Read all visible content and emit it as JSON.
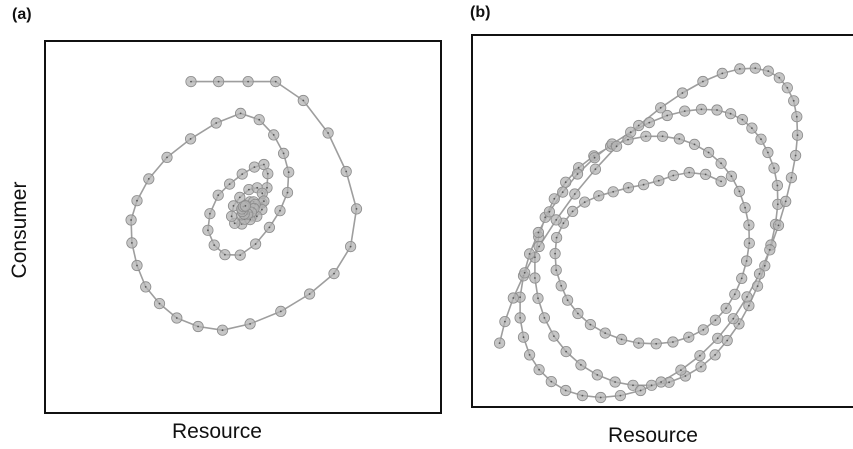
{
  "chart_data": [
    {
      "type": "line",
      "panel": "(a)",
      "xlabel": "Resource",
      "ylabel": "Consumer",
      "series": [
        {
          "marker": "circle",
          "color": "#b3b3b3",
          "x": [
            0.368,
            0.438,
            0.513,
            0.583,
            0.653,
            0.716,
            0.762,
            0.788,
            0.773,
            0.731,
            0.669,
            0.596,
            0.518,
            0.448,
            0.386,
            0.332,
            0.288,
            0.253,
            0.231,
            0.218,
            0.216,
            0.231,
            0.261,
            0.307,
            0.367,
            0.432,
            0.494,
            0.541,
            0.578,
            0.603,
            0.616,
            0.613,
            0.594,
            0.567,
            0.532,
            0.493,
            0.454,
            0.427,
            0.411,
            0.416,
            0.437,
            0.466,
            0.498,
            0.529,
            0.553,
            0.563,
            0.561,
            0.548,
            0.523,
            0.497,
            0.479,
            0.471,
            0.476,
            0.492,
            0.515,
            0.536,
            0.549,
            0.553,
            0.548,
            0.535,
            0.518,
            0.504,
            0.497,
            0.499,
            0.507,
            0.518,
            0.527,
            0.531,
            0.528,
            0.521,
            0.512,
            0.503,
            0.498,
            0.497,
            0.501,
            0.506
          ],
          "y": [
            0.893,
            0.893,
            0.893,
            0.893,
            0.842,
            0.754,
            0.65,
            0.549,
            0.447,
            0.374,
            0.319,
            0.272,
            0.238,
            0.221,
            0.231,
            0.254,
            0.293,
            0.338,
            0.396,
            0.457,
            0.519,
            0.571,
            0.63,
            0.688,
            0.738,
            0.781,
            0.807,
            0.79,
            0.749,
            0.699,
            0.648,
            0.593,
            0.544,
            0.499,
            0.454,
            0.424,
            0.425,
            0.451,
            0.491,
            0.536,
            0.586,
            0.616,
            0.643,
            0.662,
            0.669,
            0.644,
            0.606,
            0.565,
            0.53,
            0.508,
            0.51,
            0.529,
            0.557,
            0.58,
            0.601,
            0.606,
            0.591,
            0.57,
            0.547,
            0.529,
            0.52,
            0.521,
            0.533,
            0.546,
            0.559,
            0.568,
            0.568,
            0.561,
            0.55,
            0.54,
            0.535,
            0.535,
            0.542,
            0.549,
            0.555,
            0.557
          ]
        }
      ]
    },
    {
      "type": "line",
      "panel": "(b)",
      "xlabel": "Resource",
      "ylabel": "Consumer",
      "series": [
        {
          "marker": "circle",
          "color": "#b3b3b3",
          "x": [
            0.653,
            0.612,
            0.569,
            0.527,
            0.489,
            0.449,
            0.409,
            0.369,
            0.331,
            0.294,
            0.262,
            0.238,
            0.22,
            0.216,
            0.219,
            0.232,
            0.249,
            0.276,
            0.309,
            0.348,
            0.391,
            0.436,
            0.482,
            0.526,
            0.568,
            0.606,
            0.638,
            0.666,
            0.689,
            0.707,
            0.72,
            0.727,
            0.726,
            0.716,
            0.701,
            0.68,
            0.653,
            0.62,
            0.583,
            0.543,
            0.499,
            0.455,
            0.408,
            0.362,
            0.318,
            0.278,
            0.244,
            0.214,
            0.19,
            0.173,
            0.163,
            0.163,
            0.171,
            0.188,
            0.213,
            0.245,
            0.284,
            0.327,
            0.374,
            0.421,
            0.47,
            0.516,
            0.559,
            0.6,
            0.637,
            0.669,
            0.7,
            0.726,
            0.749,
            0.768,
            0.784,
            0.796,
            0.802,
            0.801,
            0.792,
            0.776,
            0.758,
            0.734,
            0.709,
            0.678,
            0.642,
            0.601,
            0.557,
            0.511,
            0.464,
            0.415,
            0.366,
            0.32,
            0.275,
            0.236,
            0.201,
            0.172,
            0.149,
            0.133,
            0.124,
            0.124,
            0.133,
            0.149,
            0.174,
            0.206,
            0.244,
            0.288,
            0.336,
            0.388,
            0.441,
            0.495,
            0.547,
            0.597,
            0.644,
            0.685,
            0.721,
            0.754,
            0.781,
            0.804,
            0.823,
            0.838,
            0.849,
            0.854,
            0.852,
            0.844,
            0.827,
            0.806,
            0.777,
            0.743,
            0.702,
            0.656,
            0.605,
            0.551,
            0.494,
            0.436,
            0.378,
            0.322,
            0.268,
            0.219,
            0.174,
            0.136,
            0.106,
            0.084,
            0.07
          ],
          "y": [
            0.607,
            0.626,
            0.631,
            0.623,
            0.609,
            0.598,
            0.59,
            0.579,
            0.568,
            0.551,
            0.526,
            0.494,
            0.455,
            0.412,
            0.367,
            0.325,
            0.286,
            0.25,
            0.22,
            0.197,
            0.18,
            0.17,
            0.168,
            0.173,
            0.186,
            0.206,
            0.232,
            0.264,
            0.302,
            0.345,
            0.392,
            0.44,
            0.489,
            0.536,
            0.58,
            0.621,
            0.656,
            0.685,
            0.707,
            0.722,
            0.729,
            0.729,
            0.72,
            0.702,
            0.676,
            0.644,
            0.605,
            0.56,
            0.51,
            0.457,
            0.402,
            0.346,
            0.291,
            0.238,
            0.189,
            0.147,
            0.111,
            0.084,
            0.065,
            0.056,
            0.056,
            0.064,
            0.081,
            0.106,
            0.138,
            0.177,
            0.222,
            0.271,
            0.324,
            0.379,
            0.435,
            0.491,
            0.545,
            0.596,
            0.643,
            0.685,
            0.721,
            0.751,
            0.774,
            0.79,
            0.8,
            0.802,
            0.797,
            0.785,
            0.766,
            0.74,
            0.708,
            0.671,
            0.627,
            0.578,
            0.525,
            0.469,
            0.411,
            0.352,
            0.294,
            0.238,
            0.186,
            0.138,
            0.098,
            0.066,
            0.042,
            0.028,
            0.023,
            0.028,
            0.042,
            0.065,
            0.097,
            0.136,
            0.183,
            0.236,
            0.295,
            0.357,
            0.422,
            0.488,
            0.553,
            0.617,
            0.677,
            0.732,
            0.782,
            0.825,
            0.86,
            0.887,
            0.905,
            0.913,
            0.911,
            0.899,
            0.877,
            0.846,
            0.806,
            0.758,
            0.702,
            0.64,
            0.573,
            0.503,
            0.431,
            0.36,
            0.292,
            0.228,
            0.17
          ]
        }
      ]
    }
  ]
}
